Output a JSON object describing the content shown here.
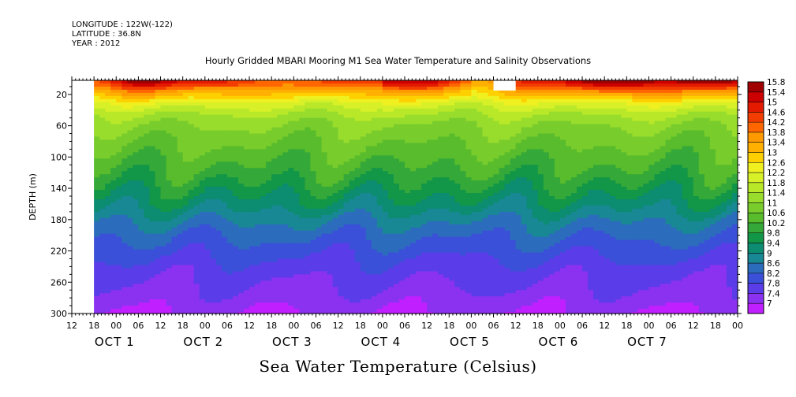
{
  "header": {
    "longitude": "LONGITUDE : 122W(-122)",
    "latitude": "LATITUDE : 36.8N",
    "year": "YEAR : 2012"
  },
  "chart_data": {
    "type": "heatmap",
    "title": "Hourly Gridded MBARI Mooring M1 Sea Water Temperature and Salinity Observations",
    "subtitle": "Sea Water Temperature (Celsius)",
    "ylabel": "DEPTH (m)",
    "ylim": [
      300,
      2
    ],
    "y_ticks": [
      20,
      60,
      100,
      140,
      180,
      220,
      260,
      300
    ],
    "x_hour_ticks": [
      "12",
      "18",
      "00",
      "06",
      "12",
      "18",
      "00",
      "06",
      "12",
      "18",
      "00",
      "06",
      "12",
      "18",
      "00",
      "06",
      "12",
      "18",
      "00",
      "06",
      "12",
      "18",
      "00",
      "06",
      "12",
      "18",
      "00",
      "06",
      "12",
      "18",
      "00"
    ],
    "x_day_labels": [
      "OCT 1",
      "OCT 2",
      "OCT 3",
      "OCT 4",
      "OCT 5",
      "OCT 6",
      "OCT 7"
    ],
    "x_day_anchor_hours": [
      0,
      24,
      48,
      72,
      96,
      120,
      144
    ],
    "time_range_hours": [
      -12,
      168
    ],
    "data_start_hour": -6,
    "colorbar_levels": [
      "15.8",
      "15.4",
      "15",
      "14.6",
      "14.2",
      "13.8",
      "13.4",
      "13",
      "12.6",
      "12.2",
      "11.8",
      "11.4",
      "11",
      "10.6",
      "10.2",
      "9.8",
      "9.4",
      "9",
      "8.6",
      "8.2",
      "7.8",
      "7.4",
      "7"
    ],
    "colorbar_colors": [
      "#a00000",
      "#cc0000",
      "#e31a00",
      "#f23c00",
      "#ff6600",
      "#ff9900",
      "#ffb000",
      "#ffd000",
      "#f0f020",
      "#d8f028",
      "#b8e828",
      "#98dc2c",
      "#78cc2c",
      "#58bc2c",
      "#34a838",
      "#129648",
      "#0c8c70",
      "#188894",
      "#2c6cbc",
      "#3a50d8",
      "#5a3ce8",
      "#8a32f0",
      "#c020ff"
    ],
    "colorbar_bounds": [
      7,
      15.8
    ],
    "representative_profile": {
      "depths": [
        2,
        8,
        16,
        24,
        32,
        45,
        60,
        80,
        100,
        120,
        140,
        160,
        180,
        200,
        220,
        240,
        260,
        280,
        300
      ],
      "temperatures": [
        14.6,
        14.2,
        13.4,
        12.8,
        12.2,
        11.6,
        11.2,
        10.9,
        10.6,
        10.3,
        9.9,
        9.5,
        9.0,
        8.6,
        8.3,
        8.0,
        7.8,
        7.6,
        7.4
      ]
    },
    "missing_patch": {
      "start_hour": 102,
      "end_hour": 108,
      "depth_range": [
        2,
        15
      ]
    }
  }
}
